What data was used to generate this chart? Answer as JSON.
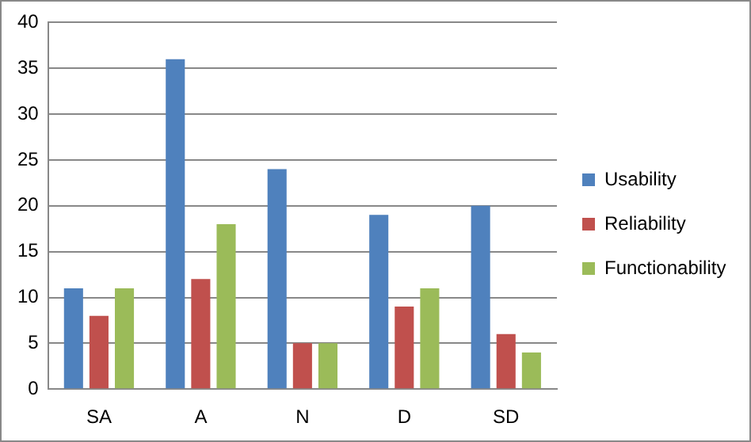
{
  "chart_data": {
    "type": "bar",
    "categories": [
      "SA",
      "A",
      "N",
      "D",
      "SD"
    ],
    "series": [
      {
        "name": "Usability",
        "color": "#4f81bd",
        "values": [
          11,
          36,
          24,
          19,
          20
        ]
      },
      {
        "name": "Reliability",
        "color": "#c0504d",
        "values": [
          8,
          12,
          5,
          9,
          6
        ]
      },
      {
        "name": "Functionability",
        "color": "#9bbb59",
        "values": [
          11,
          18,
          5,
          11,
          4
        ]
      }
    ],
    "ylim": [
      0,
      40
    ],
    "yticks": [
      0,
      5,
      10,
      15,
      20,
      25,
      30,
      35,
      40
    ],
    "grid": "y",
    "legend": "right"
  }
}
